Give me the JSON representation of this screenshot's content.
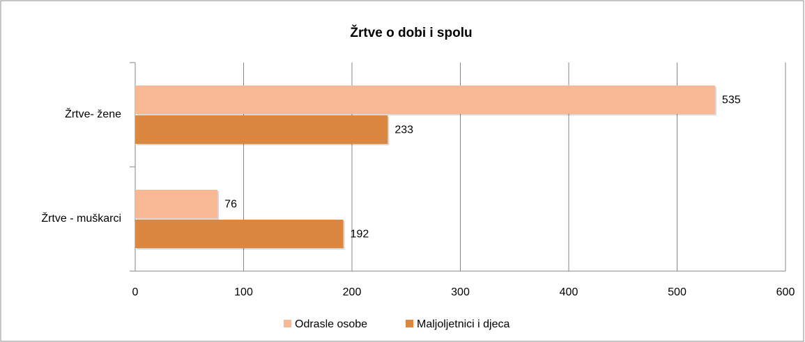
{
  "chart_data": {
    "type": "hbar",
    "title": "Žrtve o dobi i spolu",
    "categories": [
      "Žrtve- žene",
      "Žrtve - muškarci"
    ],
    "series": [
      {
        "name": "Odrasle osobe",
        "color": "#f9b894",
        "values": [
          535,
          76
        ]
      },
      {
        "name": "Maljoljetnici i djeca",
        "color": "#dc8741",
        "values": [
          233,
          192
        ]
      }
    ],
    "xlim": [
      0,
      600
    ],
    "xticks": [
      0,
      100,
      200,
      300,
      400,
      500,
      600
    ],
    "grid": true,
    "legend": "bottom"
  }
}
